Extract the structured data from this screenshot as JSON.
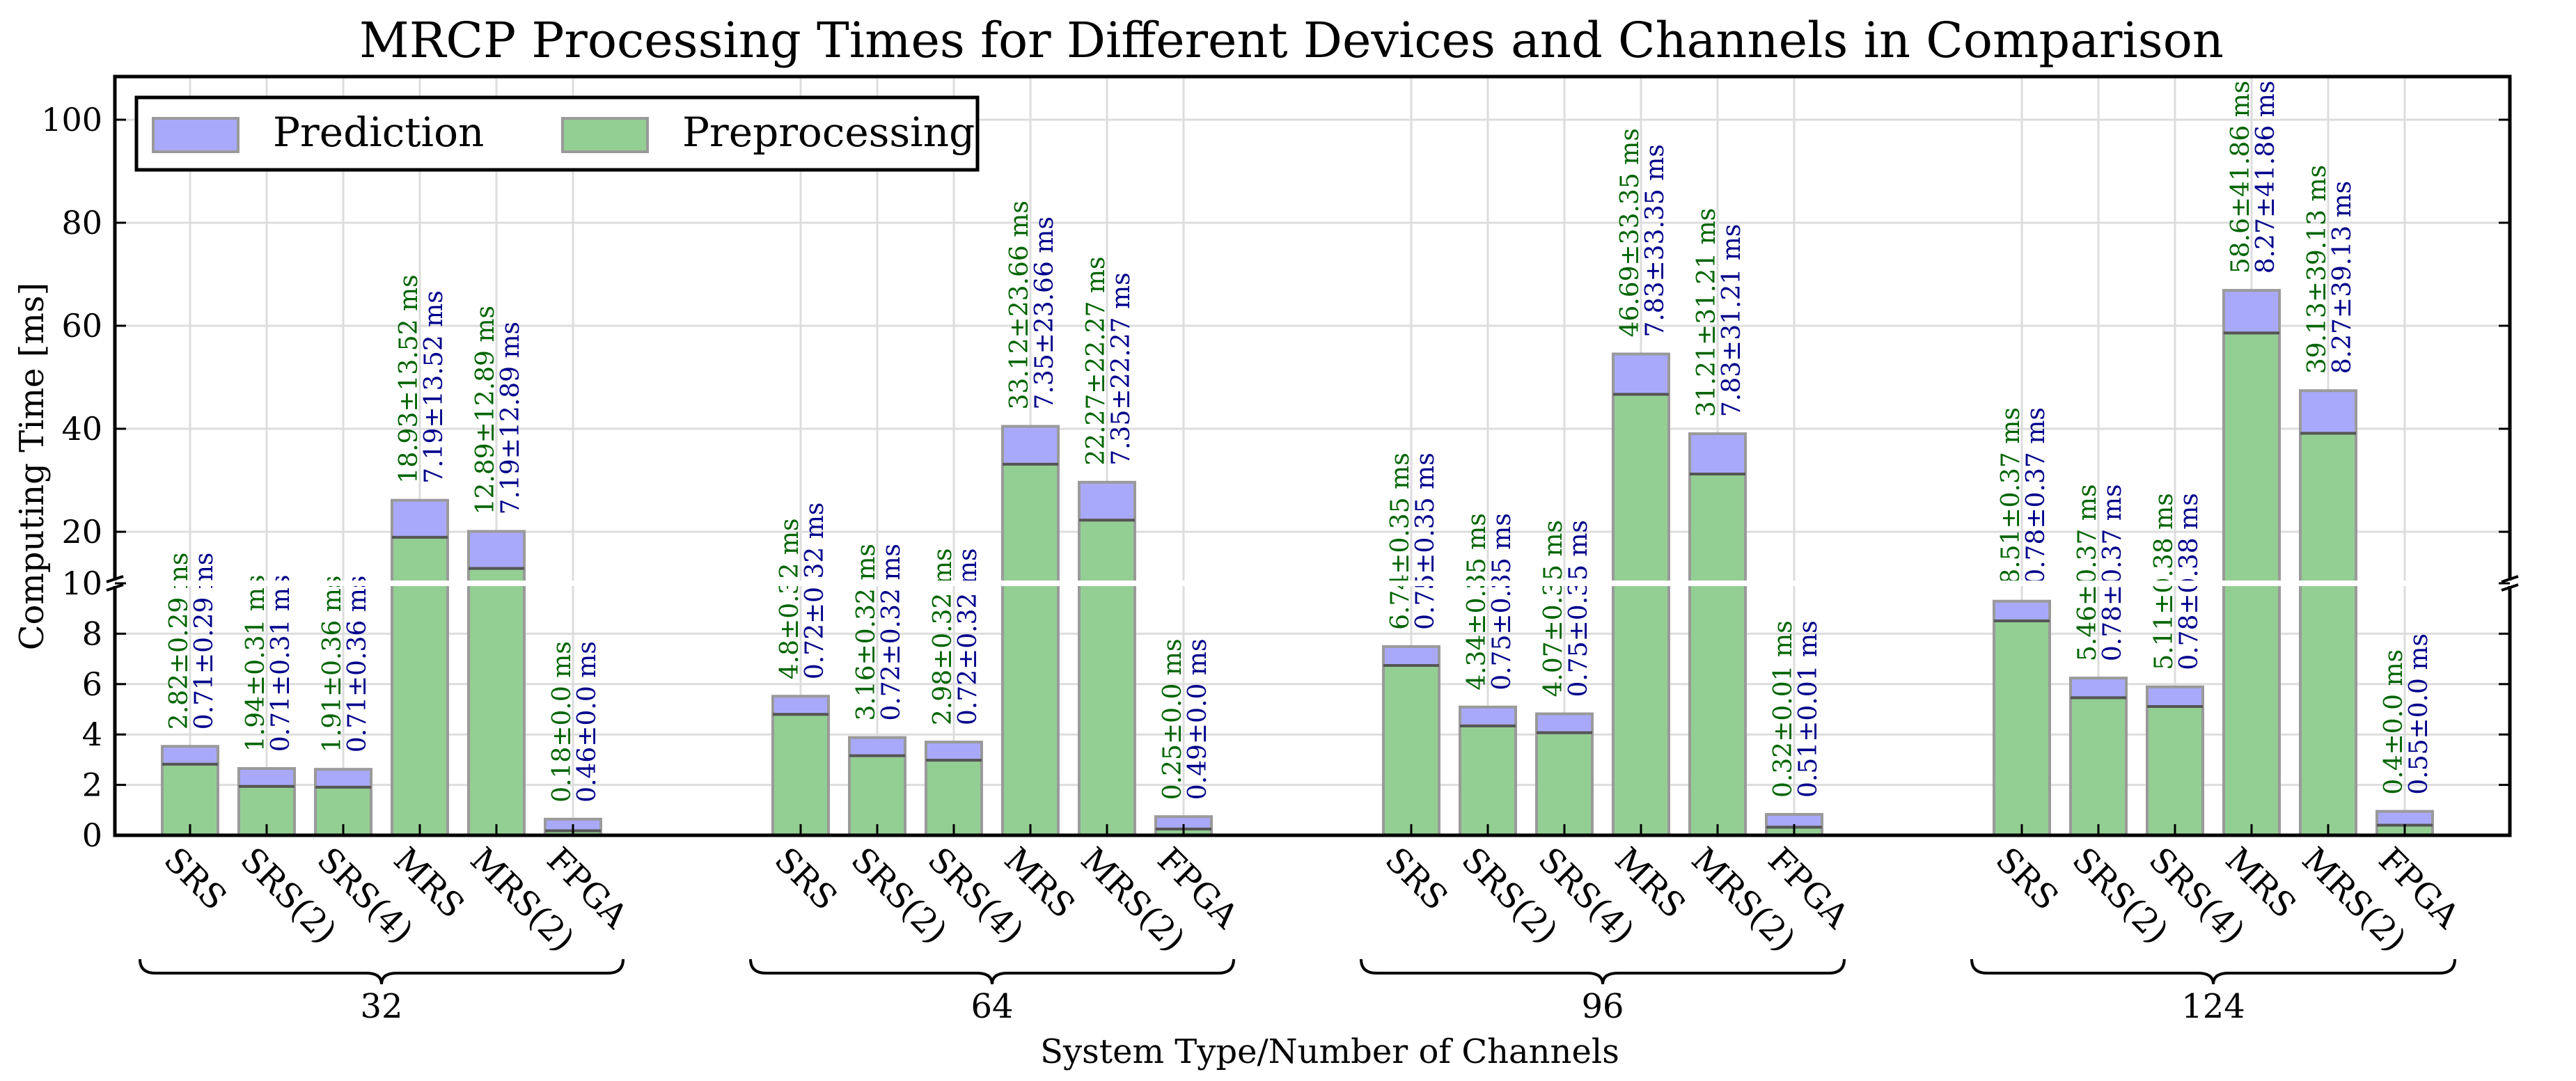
{
  "chart_data": {
    "type": "bar",
    "stacked": true,
    "title": "MRCP Processing Times for Different Devices and Channels in Comparison",
    "xlabel": "System Type/Number of Channels",
    "ylabel": "Computing Time [ms]",
    "y_axis": {
      "broken": true,
      "lower_range": [
        0,
        10
      ],
      "upper_range": [
        10,
        110
      ],
      "lower_ticks": [
        "0",
        "2",
        "4",
        "6",
        "8",
        "10"
      ],
      "upper_ticks": [
        "20",
        "40",
        "60",
        "80",
        "100"
      ]
    },
    "legend": {
      "placement": "top-left",
      "entries": [
        "Prediction",
        "Preprocessing"
      ]
    },
    "series": [
      {
        "name": "Preprocessing",
        "color": "#93cf93"
      },
      {
        "name": "Prediction",
        "color": "#a9a9fb"
      }
    ],
    "groups": [
      {
        "label": "32",
        "bars": [
          {
            "device": "SRS",
            "preprocessing": 2.82,
            "prediction": 0.71,
            "pre_label": "2.82±0.29 ms",
            "pred_label": "0.71±0.29 ms"
          },
          {
            "device": "SRS(2)",
            "preprocessing": 1.94,
            "prediction": 0.71,
            "pre_label": "1.94±0.31 ms",
            "pred_label": "0.71±0.31 ms"
          },
          {
            "device": "SRS(4)",
            "preprocessing": 1.91,
            "prediction": 0.71,
            "pre_label": "1.91±0.36 ms",
            "pred_label": "0.71±0.36 ms"
          },
          {
            "device": "MRS",
            "preprocessing": 18.93,
            "prediction": 7.19,
            "pre_label": "18.93±13.52 ms",
            "pred_label": "7.19±13.52 ms"
          },
          {
            "device": "MRS(2)",
            "preprocessing": 12.89,
            "prediction": 7.19,
            "pre_label": "12.89±12.89 ms",
            "pred_label": "7.19±12.89 ms"
          },
          {
            "device": "FPGA",
            "preprocessing": 0.18,
            "prediction": 0.46,
            "pre_label": "0.18±0.0 ms",
            "pred_label": "0.46±0.0 ms"
          }
        ]
      },
      {
        "label": "64",
        "bars": [
          {
            "device": "SRS",
            "preprocessing": 4.8,
            "prediction": 0.72,
            "pre_label": "4.8±0.32 ms",
            "pred_label": "0.72±0.32 ms"
          },
          {
            "device": "SRS(2)",
            "preprocessing": 3.16,
            "prediction": 0.72,
            "pre_label": "3.16±0.32 ms",
            "pred_label": "0.72±0.32 ms"
          },
          {
            "device": "SRS(4)",
            "preprocessing": 2.98,
            "prediction": 0.72,
            "pre_label": "2.98±0.32 ms",
            "pred_label": "0.72±0.32 ms"
          },
          {
            "device": "MRS",
            "preprocessing": 33.12,
            "prediction": 7.35,
            "pre_label": "33.12±23.66 ms",
            "pred_label": "7.35±23.66 ms"
          },
          {
            "device": "MRS(2)",
            "preprocessing": 22.27,
            "prediction": 7.35,
            "pre_label": "22.27±22.27 ms",
            "pred_label": "7.35±22.27 ms"
          },
          {
            "device": "FPGA",
            "preprocessing": 0.25,
            "prediction": 0.49,
            "pre_label": "0.25±0.0 ms",
            "pred_label": "0.49±0.0 ms"
          }
        ]
      },
      {
        "label": "96",
        "bars": [
          {
            "device": "SRS",
            "preprocessing": 6.74,
            "prediction": 0.75,
            "pre_label": "6.74±0.35 ms",
            "pred_label": "0.75±0.35 ms"
          },
          {
            "device": "SRS(2)",
            "preprocessing": 4.34,
            "prediction": 0.75,
            "pre_label": "4.34±0.35 ms",
            "pred_label": "0.75±0.35 ms"
          },
          {
            "device": "SRS(4)",
            "preprocessing": 4.07,
            "prediction": 0.75,
            "pre_label": "4.07±0.35 ms",
            "pred_label": "0.75±0.35 ms"
          },
          {
            "device": "MRS",
            "preprocessing": 46.69,
            "prediction": 7.83,
            "pre_label": "46.69±33.35 ms",
            "pred_label": "7.83±33.35 ms"
          },
          {
            "device": "MRS(2)",
            "preprocessing": 31.21,
            "prediction": 7.83,
            "pre_label": "31.21±31.21 ms",
            "pred_label": "7.83±31.21 ms"
          },
          {
            "device": "FPGA",
            "preprocessing": 0.32,
            "prediction": 0.51,
            "pre_label": "0.32±0.01 ms",
            "pred_label": "0.51±0.01 ms"
          }
        ]
      },
      {
        "label": "124",
        "bars": [
          {
            "device": "SRS",
            "preprocessing": 8.51,
            "prediction": 0.78,
            "pre_label": "8.51±0.37 ms",
            "pred_label": "0.78±0.37 ms"
          },
          {
            "device": "SRS(2)",
            "preprocessing": 5.46,
            "prediction": 0.78,
            "pre_label": "5.46±0.37 ms",
            "pred_label": "0.78±0.37 ms"
          },
          {
            "device": "SRS(4)",
            "preprocessing": 5.11,
            "prediction": 0.78,
            "pre_label": "5.11±0.38 ms",
            "pred_label": "0.78±0.38 ms"
          },
          {
            "device": "MRS",
            "preprocessing": 58.6,
            "prediction": 8.27,
            "pre_label": "58.6±41.86 ms",
            "pred_label": "8.27±41.86 ms"
          },
          {
            "device": "MRS(2)",
            "preprocessing": 39.13,
            "prediction": 8.27,
            "pre_label": "39.13±39.13 ms",
            "pred_label": "8.27±39.13 ms"
          },
          {
            "device": "FPGA",
            "preprocessing": 0.4,
            "prediction": 0.55,
            "pre_label": "0.4±0.0 ms",
            "pred_label": "0.55±0.0 ms"
          }
        ]
      }
    ]
  },
  "colors": {
    "preprocessing_fill": "#93cf93",
    "prediction_fill": "#a9a9fb",
    "bar_edge": "#9a9a9a",
    "pre_text": "#006400",
    "pred_text": "#00008b",
    "grid": "#dddddd"
  }
}
